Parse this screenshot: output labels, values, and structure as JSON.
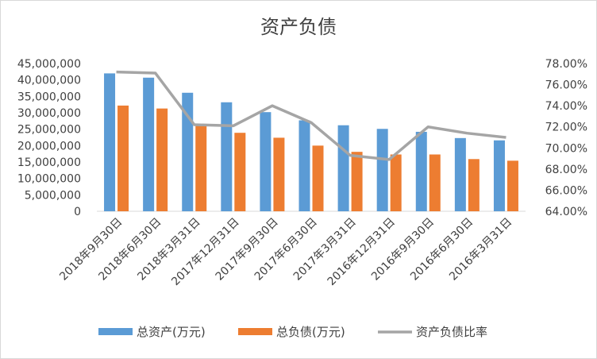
{
  "chart_data": {
    "type": "bar",
    "title": "资产负债",
    "categories": [
      "2018年9月30日",
      "2018年6月30日",
      "2018年3月31日",
      "2017年12月31日",
      "2017年9月30日",
      "2017年6月30日",
      "2017年3月31日",
      "2016年12月31日",
      "2016年9月30日",
      "2016年6月30日",
      "2016年3月31日"
    ],
    "series": [
      {
        "name": "总资产(万元)",
        "type": "bar",
        "axis": "left",
        "color": "#5B9BD5",
        "values": [
          42000000,
          40700000,
          36100000,
          33200000,
          30200000,
          27700000,
          26200000,
          25100000,
          24200000,
          22300000,
          21600000
        ]
      },
      {
        "name": "总负债(万元)",
        "type": "bar",
        "axis": "left",
        "color": "#ED7D31",
        "values": [
          32200000,
          31300000,
          26100000,
          23900000,
          22400000,
          20000000,
          18100000,
          17300000,
          17300000,
          15900000,
          15400000
        ]
      },
      {
        "name": "资产负债比率",
        "type": "line",
        "axis": "right",
        "color": "#A5A5A5",
        "values": [
          0.772,
          0.771,
          0.722,
          0.721,
          0.74,
          0.724,
          0.693,
          0.689,
          0.72,
          0.714,
          0.71
        ]
      }
    ],
    "ylim": [
      0,
      45000000
    ],
    "y_ticks": [
      "45,000,000",
      "40,000,000",
      "35,000,000",
      "30,000,000",
      "25,000,000",
      "20,000,000",
      "15,000,000",
      "10,000,000",
      "5,000,000",
      "0"
    ],
    "y2lim": [
      0.64,
      0.78
    ],
    "y2_ticks": [
      "78.00%",
      "76.00%",
      "74.00%",
      "72.00%",
      "70.00%",
      "68.00%",
      "66.00%",
      "64.00%"
    ],
    "grid": false,
    "legend_position": "bottom"
  }
}
